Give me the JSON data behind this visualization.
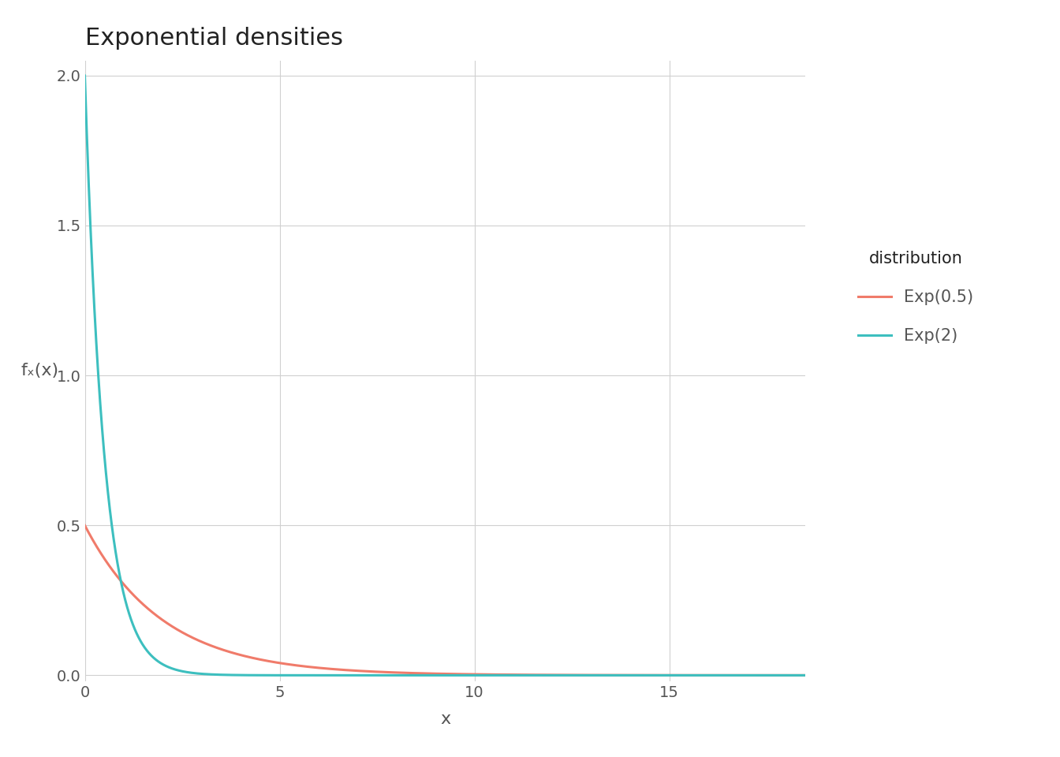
{
  "title": "Exponential densities",
  "xlabel": "x",
  "ylabel": "fₓ(x)",
  "lambdas": [
    0.5,
    2.0
  ],
  "labels": [
    "Exp(0.5)",
    "Exp(2)"
  ],
  "colors": [
    "#F07B6A",
    "#3DBFBF"
  ],
  "x_min": 0,
  "x_max": 18.5,
  "y_min": -0.02,
  "y_max": 2.05,
  "yticks": [
    0.0,
    0.5,
    1.0,
    1.5,
    2.0
  ],
  "xticks": [
    0,
    5,
    10,
    15
  ],
  "legend_title": "distribution",
  "background_color": "#FFFFFF",
  "grid_color": "#D0D0D0",
  "line_width": 2.2,
  "title_fontsize": 22,
  "axis_label_fontsize": 16,
  "tick_fontsize": 14,
  "legend_fontsize": 15,
  "legend_title_fontsize": 15
}
